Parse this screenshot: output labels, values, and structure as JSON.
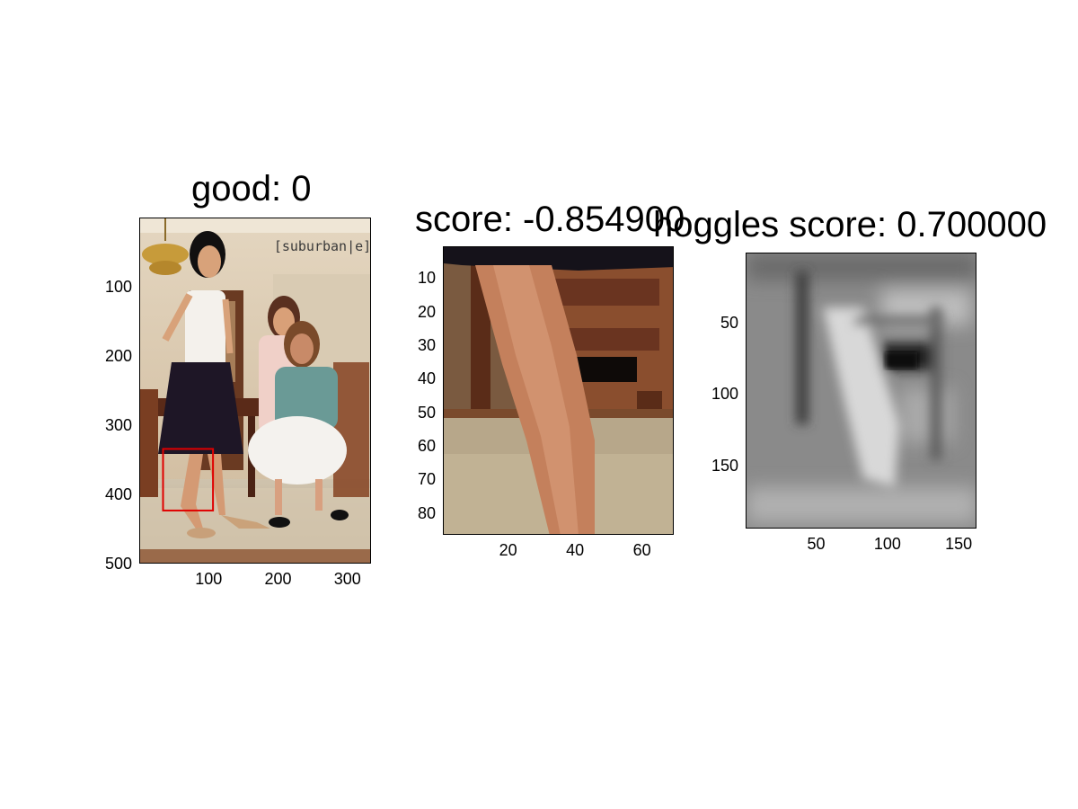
{
  "chart_data": [
    {
      "type": "image",
      "title": "good: 0",
      "scene": "photo of three women in a dining room",
      "watermark": "[suburban|e]",
      "xlim": [
        0,
        334
      ],
      "ylim": [
        500,
        0
      ],
      "x_ticks": [
        100,
        200,
        300
      ],
      "y_ticks": [
        100,
        200,
        300,
        400,
        500
      ],
      "annotations": [
        {
          "type": "rectangle",
          "color": "#e00000",
          "x": [
            33,
            105
          ],
          "y": [
            333,
            422
          ]
        }
      ]
    },
    {
      "type": "image",
      "title": "score: -0.854900",
      "scene": "cropped detail of a leg in front of a chair",
      "xlim": [
        0.5,
        69.5
      ],
      "ylim": [
        86.5,
        0.5
      ],
      "x_ticks": [
        20,
        40,
        60
      ],
      "y_ticks": [
        10,
        20,
        30,
        40,
        50,
        60,
        70,
        80
      ]
    },
    {
      "type": "heatmap",
      "title": "hoggles score: 0.700000",
      "colormap": "gray",
      "xlim": [
        0.5,
        162.5
      ],
      "ylim": [
        194.5,
        0.5
      ],
      "x_ticks": [
        50,
        100,
        150
      ],
      "y_ticks": [
        50,
        100,
        150
      ]
    }
  ]
}
